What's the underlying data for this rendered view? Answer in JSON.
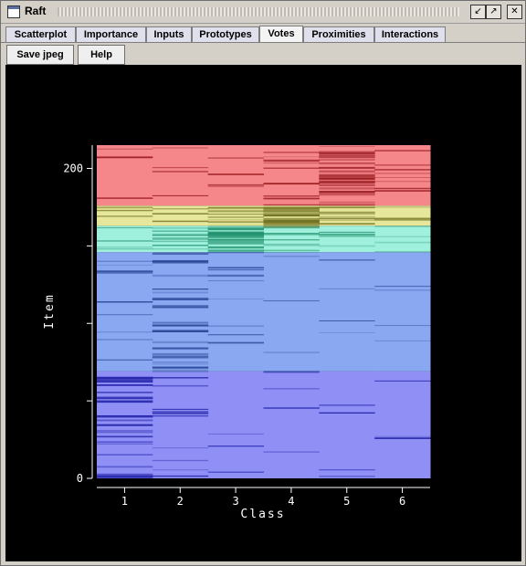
{
  "window": {
    "title": "Raft"
  },
  "tabs": [
    {
      "label": "Scatterplot"
    },
    {
      "label": "Importance"
    },
    {
      "label": "Inputs"
    },
    {
      "label": "Prototypes"
    },
    {
      "label": "Votes"
    },
    {
      "label": "Proximities"
    },
    {
      "label": "Interactions"
    }
  ],
  "active_tab": "Votes",
  "toolbar": {
    "save_label": "Save jpeg",
    "help_label": "Help"
  },
  "chart_data": {
    "type": "heatmap",
    "xlabel": "Class",
    "ylabel": "Item",
    "x": [
      1,
      2,
      3,
      4,
      5,
      6
    ],
    "x_tick_labels": [
      "1",
      "2",
      "3",
      "4",
      "5",
      "6"
    ],
    "y_tick_labels": [
      "0",
      "200"
    ],
    "ylim": [
      0,
      215
    ],
    "groups": [
      {
        "class": 1,
        "y_range": [
          0,
          69
        ],
        "color": "#8f8ff5"
      },
      {
        "class": 2,
        "y_range": [
          69,
          146
        ],
        "color": "#8aa8f2"
      },
      {
        "class": 3,
        "y_range": [
          146,
          163
        ],
        "color": "#9ff0dc"
      },
      {
        "class": 4,
        "y_range": [
          163,
          176
        ],
        "color": "#e7e79b"
      },
      {
        "class": 5,
        "y_range": [
          176,
          215
        ],
        "color": "#f5878a"
      }
    ]
  }
}
